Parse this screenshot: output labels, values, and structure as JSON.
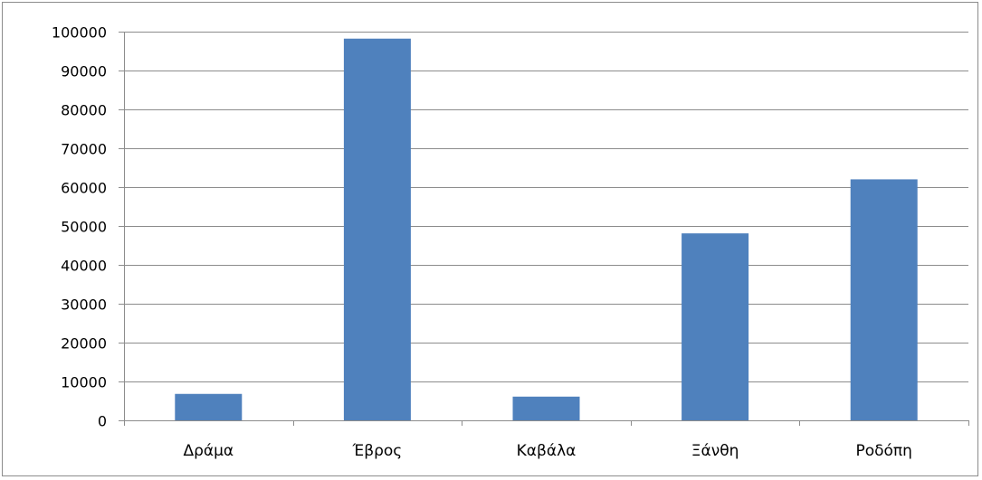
{
  "chart_data": {
    "type": "bar",
    "categories": [
      "Δράμα",
      "Έβρος",
      "Καβάλα",
      "Ξάνθη",
      "Ροδόπη"
    ],
    "values": [
      6800,
      98200,
      6100,
      48100,
      62000
    ],
    "ylim": [
      0,
      100000
    ],
    "yticks": [
      0,
      10000,
      20000,
      30000,
      40000,
      50000,
      60000,
      70000,
      80000,
      90000,
      100000
    ],
    "grid": true,
    "legend": "none",
    "bar_color": "#4f81bd"
  }
}
